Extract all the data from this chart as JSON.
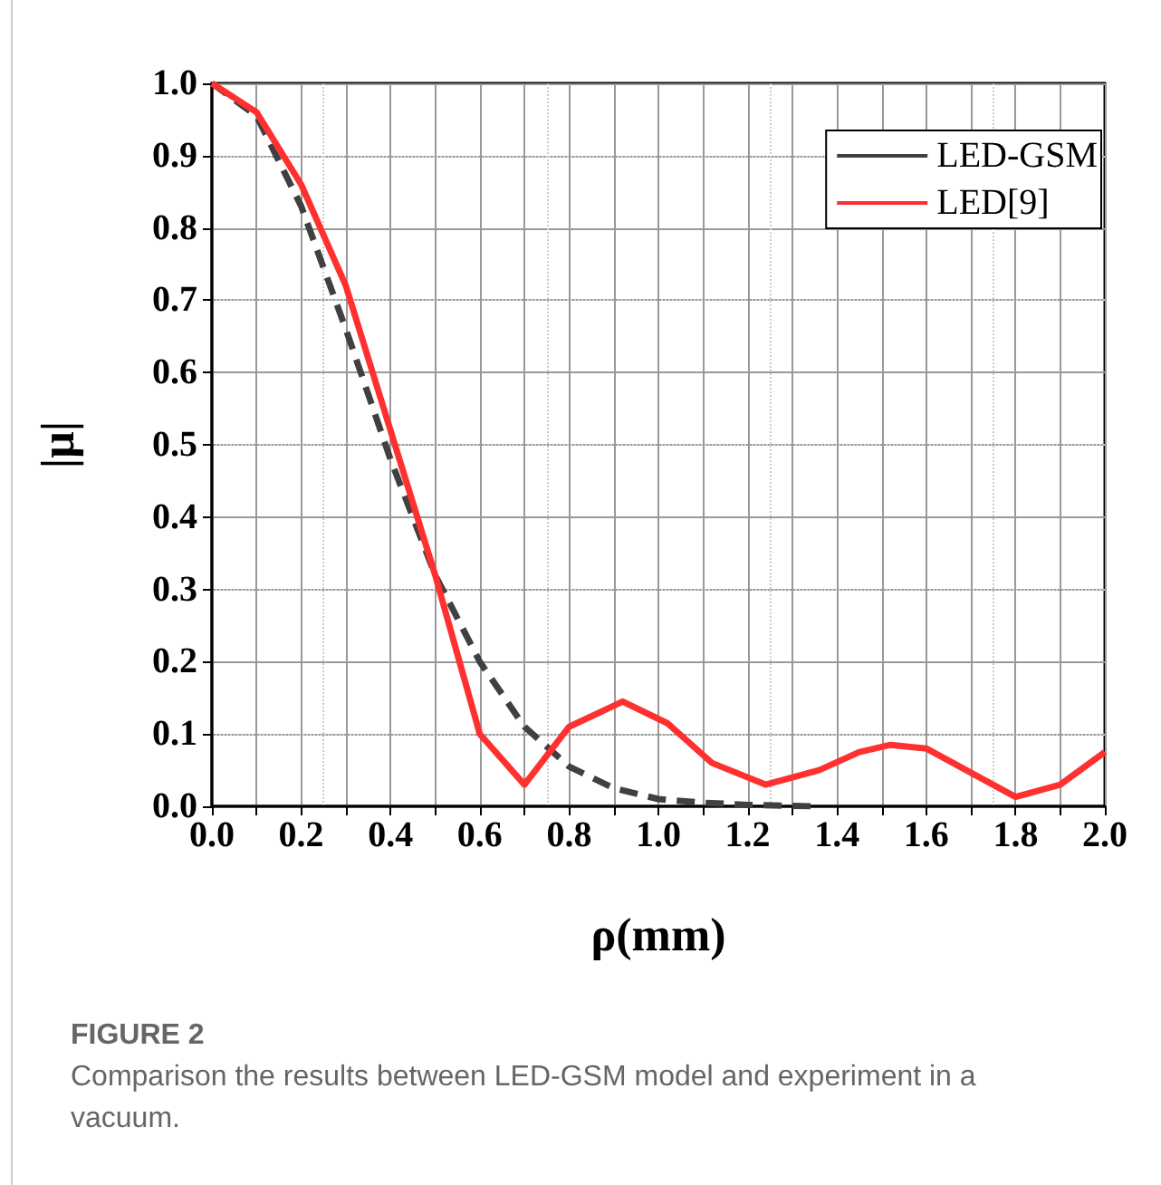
{
  "chart_data": {
    "type": "line",
    "xlabel": "ρ(mm)",
    "ylabel": "|μ|",
    "annotations": [
      "FIGURE 2",
      "Comparison the results between LED-GSM model and experiment in a vacuum."
    ],
    "xlim": [
      0,
      2
    ],
    "xticks": [
      {
        "value": 0,
        "label": "0.0"
      },
      {
        "value": 0.1,
        "label": null
      },
      {
        "value": 0.2,
        "label": "0.2"
      },
      {
        "value": 0.3,
        "label": null
      },
      {
        "value": 0.4,
        "label": "0.4"
      },
      {
        "value": 0.5,
        "label": null
      },
      {
        "value": 0.6,
        "label": "0.6"
      },
      {
        "value": 0.7,
        "label": null
      },
      {
        "value": 0.8,
        "label": "0.8"
      },
      {
        "value": 0.9,
        "label": null
      },
      {
        "value": 1,
        "label": "1.0"
      },
      {
        "value": 1.1,
        "label": null
      },
      {
        "value": 1.2,
        "label": "1.2"
      },
      {
        "value": 1.3,
        "label": null
      },
      {
        "value": 1.4,
        "label": "1.4"
      },
      {
        "value": 1.5,
        "label": null
      },
      {
        "value": 1.6,
        "label": "1.6"
      },
      {
        "value": 1.7,
        "label": null
      },
      {
        "value": 1.8,
        "label": "1.8"
      },
      {
        "value": 1.9,
        "label": null
      },
      {
        "value": 2,
        "label": "2.0"
      }
    ],
    "ylim": [
      0,
      1
    ],
    "yticks": [
      {
        "value": 0,
        "label": "0.0"
      },
      {
        "value": 0.1,
        "label": "0.1"
      },
      {
        "value": 0.2,
        "label": "0.2"
      },
      {
        "value": 0.3,
        "label": "0.3"
      },
      {
        "value": 0.4,
        "label": "0.4"
      },
      {
        "value": 0.5,
        "label": "0.5"
      },
      {
        "value": 0.6,
        "label": "0.6"
      },
      {
        "value": 0.7,
        "label": "0.7"
      },
      {
        "value": 0.8,
        "label": "0.8"
      },
      {
        "value": 0.9,
        "label": "0.9"
      },
      {
        "value": 1,
        "label": "1.0"
      }
    ],
    "grid": true,
    "legend": "top right",
    "marker": "none",
    "series": [
      {
        "name": "LED-GSM",
        "color": "#404040",
        "line_style": "dashed",
        "x": [
          0,
          0.1,
          0.2,
          0.3,
          0.4,
          0.5,
          0.6,
          0.7,
          0.8,
          0.9,
          1.0,
          1.1,
          1.2,
          1.35
        ],
        "values": [
          1.0,
          0.955,
          0.83,
          0.66,
          0.48,
          0.32,
          0.2,
          0.11,
          0.055,
          0.025,
          0.01,
          0.005,
          0.002,
          0.0
        ]
      },
      {
        "name": "LED[9]",
        "color": "#ff3030",
        "line_style": "solid",
        "x": [
          0,
          0.1,
          0.2,
          0.3,
          0.4,
          0.5,
          0.6,
          0.7,
          0.8,
          0.92,
          1.02,
          1.12,
          1.24,
          1.36,
          1.45,
          1.52,
          1.6,
          1.8,
          1.9,
          2.0
        ],
        "values": [
          1.0,
          0.96,
          0.86,
          0.72,
          0.52,
          0.32,
          0.1,
          0.03,
          0.11,
          0.145,
          0.115,
          0.06,
          0.03,
          0.05,
          0.075,
          0.085,
          0.08,
          0.013,
          0.03,
          0.075
        ]
      }
    ]
  }
}
